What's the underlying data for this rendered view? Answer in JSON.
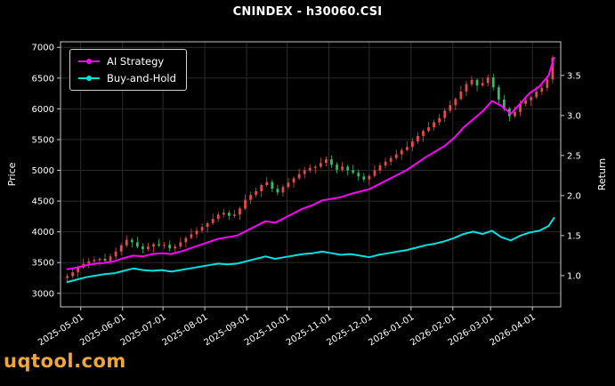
{
  "watermark": "uqtool.com",
  "colors": {
    "background": "#000000",
    "text": "#ffffff",
    "grid": "#2b2b2b",
    "spine": "#c8c8c8",
    "candle_up": "#e04b4b",
    "candle_down": "#2fbf63",
    "ai_line": "#ff00ff",
    "bh_line": "#00e1e1",
    "watermark": "#efa63c"
  },
  "chart_data": {
    "type": "candlestick_with_lines",
    "title": "CNINDEX - h30060.CSI",
    "legend_position": "upper left",
    "x_range": [
      -5,
      366
    ],
    "x_ticks": [
      {
        "day": 10,
        "label": "2025-05-01"
      },
      {
        "day": 41,
        "label": "2025-06-01"
      },
      {
        "day": 71,
        "label": "2025-07-01"
      },
      {
        "day": 102,
        "label": "2025-08-01"
      },
      {
        "day": 133,
        "label": "2025-09-01"
      },
      {
        "day": 163,
        "label": "2025-10-01"
      },
      {
        "day": 194,
        "label": "2025-11-01"
      },
      {
        "day": 224,
        "label": "2025-12-01"
      },
      {
        "day": 255,
        "label": "2026-01-01"
      },
      {
        "day": 286,
        "label": "2026-02-01"
      },
      {
        "day": 314,
        "label": "2026-03-01"
      },
      {
        "day": 345,
        "label": "2026-04-01"
      }
    ],
    "price_axis": {
      "label": "Price",
      "ticks": [
        3000,
        3500,
        4000,
        4500,
        5000,
        5500,
        6000,
        6500,
        7000
      ],
      "range": [
        2780,
        7090
      ]
    },
    "return_axis": {
      "label": "Return",
      "ticks": [
        1.0,
        1.5,
        2.0,
        2.5,
        3.0,
        3.5
      ],
      "range": [
        0.61,
        3.92
      ]
    },
    "candles": {
      "note": "index price candles, close>=open drawn in candle_up (red), else candle_down (green)",
      "day_step": 4,
      "first_open": 3250,
      "closes": [
        3280,
        3340,
        3420,
        3480,
        3520,
        3540,
        3560,
        3530,
        3600,
        3680,
        3780,
        3870,
        3830,
        3760,
        3720,
        3760,
        3800,
        3780,
        3790,
        3730,
        3760,
        3830,
        3900,
        3960,
        4020,
        4080,
        4140,
        4210,
        4280,
        4310,
        4260,
        4280,
        4380,
        4520,
        4600,
        4660,
        4760,
        4810,
        4700,
        4640,
        4730,
        4800,
        4870,
        4940,
        5000,
        5040,
        5060,
        5120,
        5180,
        5090,
        5010,
        5060,
        5000,
        4960,
        4900,
        4850,
        4910,
        5000,
        5080,
        5140,
        5200,
        5260,
        5330,
        5380,
        5470,
        5560,
        5640,
        5700,
        5780,
        5850,
        5970,
        6060,
        6160,
        6280,
        6400,
        6470,
        6380,
        6420,
        6510,
        6350,
        6150,
        6000,
        5880,
        5950,
        6080,
        6140,
        6190,
        6280,
        6340,
        6480,
        6830
      ],
      "wick_up_cycle": [
        40,
        75,
        30,
        90,
        55,
        60,
        25,
        85,
        45,
        65
      ],
      "wick_dn_cycle": [
        65,
        35,
        85,
        25,
        70,
        40,
        95,
        30,
        55,
        50
      ]
    },
    "series": [
      {
        "name": "AI Strategy",
        "axis": "return",
        "color_key": "ai_line",
        "t": [
          0,
          7,
          14,
          21,
          28,
          35,
          42,
          49,
          56,
          63,
          70,
          77,
          84,
          91,
          98,
          105,
          112,
          119,
          126,
          133,
          140,
          147,
          154,
          161,
          168,
          175,
          182,
          189,
          196,
          203,
          210,
          217,
          224,
          231,
          238,
          245,
          252,
          259,
          266,
          273,
          280,
          287,
          294,
          301,
          308,
          315,
          322,
          329,
          336,
          343,
          350,
          357,
          361
        ],
        "values": [
          1.08,
          1.1,
          1.13,
          1.15,
          1.16,
          1.18,
          1.22,
          1.25,
          1.24,
          1.27,
          1.28,
          1.27,
          1.3,
          1.34,
          1.38,
          1.42,
          1.46,
          1.48,
          1.5,
          1.56,
          1.62,
          1.68,
          1.66,
          1.72,
          1.78,
          1.84,
          1.88,
          1.94,
          1.96,
          1.98,
          2.02,
          2.05,
          2.08,
          2.14,
          2.2,
          2.26,
          2.32,
          2.4,
          2.48,
          2.55,
          2.62,
          2.72,
          2.85,
          2.95,
          3.05,
          3.18,
          3.12,
          3.02,
          3.15,
          3.28,
          3.36,
          3.5,
          3.72
        ]
      },
      {
        "name": "Buy-and-Hold",
        "axis": "return",
        "color_key": "bh_line",
        "t": [
          0,
          7,
          14,
          21,
          28,
          35,
          42,
          49,
          56,
          63,
          70,
          77,
          84,
          91,
          98,
          105,
          112,
          119,
          126,
          133,
          140,
          147,
          154,
          161,
          168,
          175,
          182,
          189,
          196,
          203,
          210,
          217,
          224,
          231,
          238,
          245,
          252,
          259,
          266,
          273,
          280,
          287,
          294,
          301,
          308,
          315,
          322,
          329,
          336,
          343,
          350,
          357,
          361
        ],
        "values": [
          0.92,
          0.95,
          0.98,
          1.0,
          1.02,
          1.03,
          1.06,
          1.09,
          1.07,
          1.06,
          1.07,
          1.05,
          1.07,
          1.09,
          1.11,
          1.13,
          1.15,
          1.14,
          1.15,
          1.18,
          1.21,
          1.24,
          1.21,
          1.23,
          1.25,
          1.27,
          1.28,
          1.3,
          1.28,
          1.26,
          1.27,
          1.25,
          1.23,
          1.26,
          1.28,
          1.3,
          1.32,
          1.35,
          1.38,
          1.4,
          1.43,
          1.47,
          1.52,
          1.55,
          1.52,
          1.56,
          1.48,
          1.44,
          1.5,
          1.54,
          1.56,
          1.62,
          1.72
        ]
      }
    ]
  }
}
